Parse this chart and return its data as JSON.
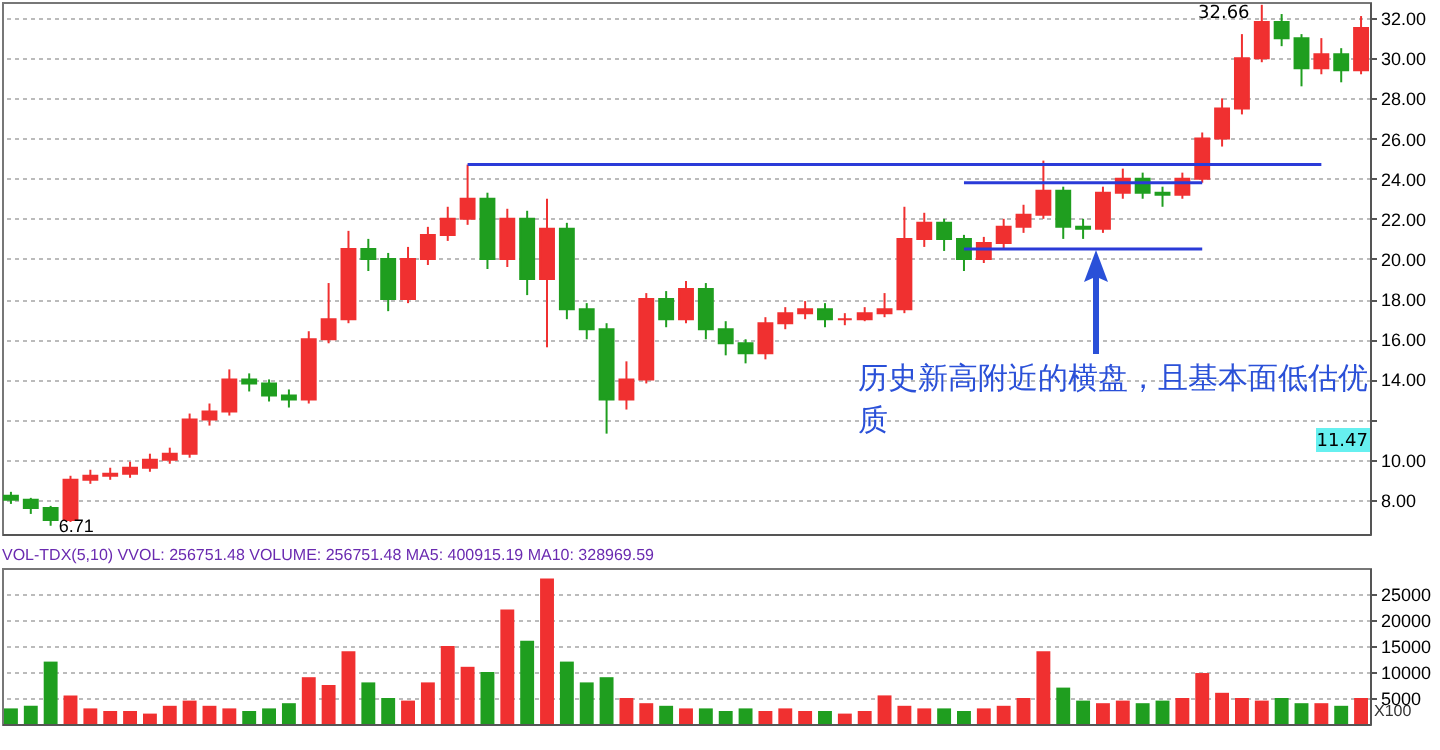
{
  "chart_data": [
    {
      "type": "candlestick",
      "categories": [
        null,
        null,
        null,
        null,
        null,
        null,
        null,
        null,
        null,
        null,
        null,
        null,
        null,
        null,
        null,
        null,
        null,
        null,
        null,
        null,
        null,
        null,
        null,
        null,
        null,
        null,
        null,
        null,
        null,
        null,
        null,
        null,
        null,
        null,
        null,
        null,
        null,
        null,
        null,
        null,
        null,
        null,
        null,
        null,
        null,
        null,
        null,
        null,
        null,
        null,
        null,
        null,
        null,
        null,
        null,
        null,
        null,
        null,
        null,
        null,
        null,
        null,
        null,
        null,
        null,
        null,
        null,
        null,
        null
      ],
      "ohlc": [
        [
          8.2,
          8.4,
          7.8,
          8.0
        ],
        [
          8.0,
          8.1,
          7.3,
          7.6
        ],
        [
          7.6,
          7.7,
          6.71,
          7.0
        ],
        [
          7.0,
          9.2,
          6.9,
          9.0
        ],
        [
          9.0,
          9.5,
          8.8,
          9.2
        ],
        [
          9.2,
          9.6,
          9.0,
          9.3
        ],
        [
          9.3,
          9.9,
          9.1,
          9.6
        ],
        [
          9.6,
          10.3,
          9.4,
          10.0
        ],
        [
          10.0,
          10.6,
          9.8,
          10.3
        ],
        [
          10.3,
          12.3,
          10.1,
          12.0
        ],
        [
          12.0,
          12.8,
          11.7,
          12.4
        ],
        [
          12.4,
          14.5,
          12.2,
          14.0
        ],
        [
          14.0,
          14.3,
          13.4,
          13.8
        ],
        [
          13.8,
          14.0,
          12.9,
          13.2
        ],
        [
          13.2,
          13.5,
          12.6,
          13.0
        ],
        [
          13.0,
          16.4,
          12.8,
          16.0
        ],
        [
          16.0,
          18.8,
          15.8,
          17.0
        ],
        [
          17.0,
          21.4,
          16.8,
          20.5
        ],
        [
          20.5,
          21.0,
          19.4,
          20.0
        ],
        [
          20.0,
          20.3,
          17.4,
          18.0
        ],
        [
          18.0,
          20.6,
          17.8,
          20.0
        ],
        [
          20.0,
          21.6,
          19.7,
          21.2
        ],
        [
          21.2,
          22.6,
          20.9,
          22.0
        ],
        [
          22.0,
          24.7,
          21.7,
          23.0
        ],
        [
          23.0,
          23.3,
          19.5,
          20.0
        ],
        [
          20.0,
          22.5,
          19.6,
          22.0
        ],
        [
          22.0,
          22.4,
          18.2,
          19.0
        ],
        [
          19.0,
          23.0,
          15.6,
          21.5
        ],
        [
          21.5,
          21.8,
          17.0,
          17.5
        ],
        [
          17.5,
          17.8,
          16.0,
          16.5
        ],
        [
          16.5,
          16.8,
          11.3,
          13.0
        ],
        [
          13.0,
          14.9,
          12.5,
          14.0
        ],
        [
          14.0,
          18.3,
          13.8,
          18.0
        ],
        [
          18.0,
          18.4,
          16.6,
          17.0
        ],
        [
          17.0,
          18.9,
          16.8,
          18.5
        ],
        [
          18.5,
          18.8,
          16.0,
          16.5
        ],
        [
          16.5,
          16.9,
          15.2,
          15.8
        ],
        [
          15.8,
          16.0,
          14.8,
          15.3
        ],
        [
          15.3,
          17.1,
          15.0,
          16.8
        ],
        [
          16.8,
          17.6,
          16.5,
          17.3
        ],
        [
          17.3,
          17.9,
          17.0,
          17.5
        ],
        [
          17.5,
          17.8,
          16.6,
          17.0
        ],
        [
          17.0,
          17.3,
          16.7,
          17.0
        ],
        [
          17.0,
          17.6,
          16.9,
          17.3
        ],
        [
          17.3,
          18.3,
          17.1,
          17.5
        ],
        [
          17.5,
          22.6,
          17.3,
          21.0
        ],
        [
          21.0,
          22.3,
          20.6,
          21.8
        ],
        [
          21.8,
          22.0,
          20.4,
          21.0
        ],
        [
          21.0,
          21.2,
          19.4,
          20.0
        ],
        [
          20.0,
          21.1,
          19.8,
          20.8
        ],
        [
          20.8,
          22.0,
          20.5,
          21.6
        ],
        [
          21.6,
          22.7,
          21.3,
          22.2
        ],
        [
          22.2,
          24.9,
          22.0,
          23.4
        ],
        [
          23.4,
          23.6,
          21.0,
          21.6
        ],
        [
          21.6,
          22.0,
          21.0,
          21.5
        ],
        [
          21.5,
          23.6,
          21.3,
          23.3
        ],
        [
          23.3,
          24.5,
          23.0,
          24.0
        ],
        [
          24.0,
          24.3,
          23.0,
          23.3
        ],
        [
          23.3,
          23.6,
          22.6,
          23.2
        ],
        [
          23.2,
          24.3,
          23.0,
          24.0
        ],
        [
          24.0,
          26.3,
          23.8,
          26.0
        ],
        [
          26.0,
          28.0,
          25.6,
          27.5
        ],
        [
          27.5,
          31.2,
          27.2,
          30.0
        ],
        [
          30.0,
          32.66,
          29.8,
          31.8
        ],
        [
          31.8,
          32.2,
          30.6,
          31.0
        ],
        [
          31.0,
          31.2,
          28.6,
          29.5
        ],
        [
          29.5,
          31.0,
          29.2,
          30.2
        ],
        [
          30.2,
          30.5,
          28.8,
          29.4
        ],
        [
          29.4,
          32.1,
          29.2,
          31.5
        ]
      ],
      "colors": [
        "#1f9e1f",
        "#1f9e1f",
        "#1f9e1f",
        "#f03030",
        "#f03030",
        "#f03030",
        "#f03030",
        "#f03030",
        "#f03030",
        "#f03030",
        "#f03030",
        "#f03030",
        "#1f9e1f",
        "#1f9e1f",
        "#1f9e1f",
        "#f03030",
        "#f03030",
        "#f03030",
        "#1f9e1f",
        "#1f9e1f",
        "#f03030",
        "#f03030",
        "#f03030",
        "#f03030",
        "#1f9e1f",
        "#f03030",
        "#1f9e1f",
        "#f03030",
        "#1f9e1f",
        "#1f9e1f",
        "#1f9e1f",
        "#f03030",
        "#f03030",
        "#1f9e1f",
        "#f03030",
        "#1f9e1f",
        "#1f9e1f",
        "#1f9e1f",
        "#f03030",
        "#f03030",
        "#f03030",
        "#1f9e1f",
        "#f03030",
        "#f03030",
        "#f03030",
        "#f03030",
        "#f03030",
        "#1f9e1f",
        "#1f9e1f",
        "#f03030",
        "#f03030",
        "#f03030",
        "#f03030",
        "#1f9e1f",
        "#1f9e1f",
        "#f03030",
        "#f03030",
        "#1f9e1f",
        "#1f9e1f",
        "#f03030",
        "#f03030",
        "#f03030",
        "#f03030",
        "#f03030",
        "#1f9e1f",
        "#1f9e1f",
        "#f03030",
        "#1f9e1f",
        "#f03030"
      ],
      "series": [
        {
          "type": "line",
          "color": "#2a3bd8",
          "values": [
            null,
            null,
            null,
            null,
            null,
            null,
            null,
            null,
            null,
            null,
            null,
            null,
            null,
            null,
            null,
            null,
            null,
            null,
            null,
            null,
            null,
            null,
            null,
            24.7,
            24.7,
            24.7,
            24.7,
            24.7,
            24.7,
            24.7,
            24.7,
            24.7,
            24.7,
            24.7,
            24.7,
            24.7,
            24.7,
            24.7,
            24.7,
            24.7,
            24.7,
            24.7,
            24.7,
            24.7,
            24.7,
            24.7,
            24.7,
            24.7,
            24.7,
            24.7,
            24.7,
            24.7,
            24.7,
            24.7,
            24.7,
            24.7,
            24.7,
            24.7,
            24.7,
            24.7,
            24.7,
            24.7,
            24.7,
            24.7,
            24.7,
            24.7,
            24.7,
            null,
            null
          ]
        },
        {
          "type": "line",
          "color": "#2a3bd8",
          "values": [
            null,
            null,
            null,
            null,
            null,
            null,
            null,
            null,
            null,
            null,
            null,
            null,
            null,
            null,
            null,
            null,
            null,
            null,
            null,
            null,
            null,
            null,
            null,
            null,
            null,
            null,
            null,
            null,
            null,
            null,
            null,
            null,
            null,
            null,
            null,
            null,
            null,
            null,
            null,
            null,
            null,
            null,
            null,
            null,
            null,
            null,
            null,
            null,
            23.8,
            23.8,
            23.8,
            23.8,
            23.8,
            23.8,
            23.8,
            23.8,
            23.8,
            23.8,
            23.8,
            23.8,
            23.8,
            null,
            null,
            null,
            null,
            null,
            null,
            null,
            null
          ]
        },
        {
          "type": "line",
          "color": "#2a3bd8",
          "values": [
            null,
            null,
            null,
            null,
            null,
            null,
            null,
            null,
            null,
            null,
            null,
            null,
            null,
            null,
            null,
            null,
            null,
            null,
            null,
            null,
            null,
            null,
            null,
            null,
            null,
            null,
            null,
            null,
            null,
            null,
            null,
            null,
            null,
            null,
            null,
            null,
            null,
            null,
            null,
            null,
            null,
            null,
            null,
            null,
            null,
            null,
            null,
            null,
            20.5,
            20.5,
            20.5,
            20.5,
            20.5,
            20.5,
            20.5,
            20.5,
            20.5,
            20.5,
            20.5,
            20.5,
            20.5,
            null,
            null,
            null,
            null,
            null,
            null,
            null,
            null
          ]
        }
      ],
      "ylim": [
        6.3,
        32.8
      ],
      "yticks": [
        {
          "value": 8,
          "label": "8.00"
        },
        {
          "value": 10,
          "label": "10.00"
        },
        {
          "value": 12,
          "label": null
        },
        {
          "value": 14,
          "label": "14.00"
        },
        {
          "value": 16,
          "label": "16.00"
        },
        {
          "value": 18,
          "label": "18.00"
        },
        {
          "value": 20,
          "label": "20.00"
        },
        {
          "value": 22,
          "label": "22.00"
        },
        {
          "value": 24,
          "label": "24.00"
        },
        {
          "value": 26,
          "label": "26.00"
        },
        {
          "value": 28,
          "label": "28.00"
        },
        {
          "value": 30,
          "label": "30.00"
        },
        {
          "value": 32,
          "label": "32.00"
        }
      ],
      "grid": "y",
      "tick_labels": "y",
      "annotations": [
        {
          "text": "6.71",
          "y": 6.71
        },
        "32.66",
        "11.47",
        "历史新高附近的横盘，且基本面低估优质"
      ]
    },
    {
      "type": "bar",
      "categories": [
        null,
        null,
        null,
        null,
        null,
        null,
        null,
        null,
        null,
        null,
        null,
        null,
        null,
        null,
        null,
        null,
        null,
        null,
        null,
        null,
        null,
        null,
        null,
        null,
        null,
        null,
        null,
        null,
        null,
        null,
        null,
        null,
        null,
        null,
        null,
        null,
        null,
        null,
        null,
        null,
        null,
        null,
        null,
        null,
        null,
        null,
        null,
        null,
        null,
        null,
        null,
        null,
        null,
        null,
        null,
        null,
        null,
        null,
        null,
        null,
        null,
        null,
        null,
        null,
        null,
        null,
        null,
        null,
        null
      ],
      "values": [
        3000,
        3500,
        12000,
        5500,
        3000,
        2500,
        2500,
        2000,
        3500,
        4500,
        3500,
        3000,
        2500,
        3000,
        4000,
        9000,
        7500,
        14000,
        8000,
        5000,
        4500,
        8000,
        15000,
        11000,
        10000,
        22000,
        16000,
        28000,
        12000,
        8000,
        9000,
        5000,
        4000,
        3500,
        3000,
        3000,
        2500,
        3000,
        2500,
        3000,
        2500,
        2500,
        2000,
        2500,
        5500,
        3500,
        3000,
        3000,
        2500,
        3000,
        3500,
        5000,
        14000,
        7000,
        4500,
        4000,
        4500,
        4000,
        4500,
        5000,
        9800,
        6000,
        5000,
        4500,
        5000,
        4000,
        4000,
        3500,
        5000
      ],
      "colors": [
        "#1f9e1f",
        "#1f9e1f",
        "#1f9e1f",
        "#f03030",
        "#f03030",
        "#f03030",
        "#f03030",
        "#f03030",
        "#f03030",
        "#f03030",
        "#f03030",
        "#f03030",
        "#1f9e1f",
        "#1f9e1f",
        "#1f9e1f",
        "#f03030",
        "#f03030",
        "#f03030",
        "#1f9e1f",
        "#1f9e1f",
        "#f03030",
        "#f03030",
        "#f03030",
        "#f03030",
        "#1f9e1f",
        "#f03030",
        "#1f9e1f",
        "#f03030",
        "#1f9e1f",
        "#1f9e1f",
        "#1f9e1f",
        "#f03030",
        "#f03030",
        "#1f9e1f",
        "#f03030",
        "#1f9e1f",
        "#1f9e1f",
        "#1f9e1f",
        "#f03030",
        "#f03030",
        "#f03030",
        "#1f9e1f",
        "#f03030",
        "#f03030",
        "#f03030",
        "#f03030",
        "#f03030",
        "#1f9e1f",
        "#1f9e1f",
        "#f03030",
        "#f03030",
        "#f03030",
        "#f03030",
        "#1f9e1f",
        "#1f9e1f",
        "#f03030",
        "#f03030",
        "#1f9e1f",
        "#1f9e1f",
        "#f03030",
        "#f03030",
        "#f03030",
        "#f03030",
        "#f03030",
        "#1f9e1f",
        "#1f9e1f",
        "#f03030",
        "#1f9e1f",
        "#f03030"
      ],
      "ylim": [
        0,
        30000
      ],
      "yticks": [
        5000,
        10000,
        15000,
        20000,
        25000
      ],
      "grid": "y",
      "tick_labels": "y",
      "title": "VOL-TDX(5,10) VVOL: 256751.48 VOLUME: 256751.48 MA5: 400915.19 MA10: 328969.59",
      "annotations": [
        "X100"
      ]
    }
  ]
}
